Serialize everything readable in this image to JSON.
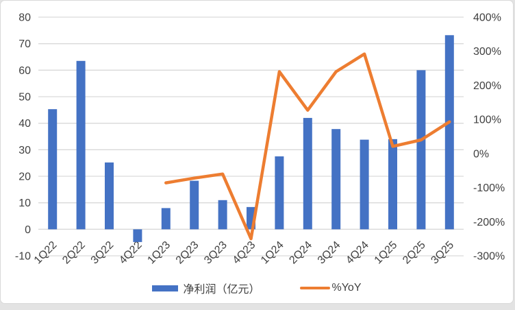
{
  "chart_data": {
    "type": "bar",
    "subtype": "bar-line-combo-dual-axis",
    "title": "",
    "categories": [
      "1Q22",
      "2Q22",
      "3Q22",
      "4Q22",
      "1Q23",
      "2Q23",
      "3Q23",
      "4Q23",
      "1Q24",
      "2Q24",
      "3Q24",
      "4Q24",
      "1Q25",
      "2Q25",
      "3Q25"
    ],
    "series": [
      {
        "name": "净利润（亿元）",
        "type": "bar",
        "axis": "left",
        "color": "#4472C4",
        "values": [
          45.3,
          63.5,
          25.2,
          -4.8,
          8.0,
          18.3,
          11.0,
          8.4,
          27.5,
          42.0,
          37.8,
          33.8,
          34.0,
          60.0,
          73.2
        ]
      },
      {
        "name": "%YoY",
        "type": "line",
        "axis": "right",
        "color": "#ED7D31",
        "values": [
          null,
          null,
          null,
          null,
          -86,
          -72,
          -60,
          -250,
          240,
          127,
          240,
          292,
          21,
          40,
          93
        ]
      }
    ],
    "left_axis": {
      "min": -10,
      "max": 80,
      "step": 10,
      "ticks": [
        "80",
        "70",
        "60",
        "50",
        "40",
        "30",
        "20",
        "10",
        "0",
        "-10"
      ]
    },
    "right_axis": {
      "min": -300,
      "max": 400,
      "step": 100,
      "ticks": [
        "400%",
        "300%",
        "200%",
        "100%",
        "0%",
        "-100%",
        "-200%",
        "-300%"
      ]
    },
    "grid": true,
    "legend_position": "bottom"
  },
  "legend": {
    "items": [
      {
        "label": "净利润（亿元）",
        "color": "#4472C4",
        "marker": "bar"
      },
      {
        "label": "%YoY",
        "color": "#ED7D31",
        "marker": "line"
      }
    ]
  },
  "colors": {
    "bar": "#4472C4",
    "line": "#ED7D31",
    "gridline": "#D9D9D9",
    "text": "#404040",
    "chart_border": "#D9D9D9",
    "background": "#FFFFFF",
    "outside_background": "#E3E3E3"
  }
}
